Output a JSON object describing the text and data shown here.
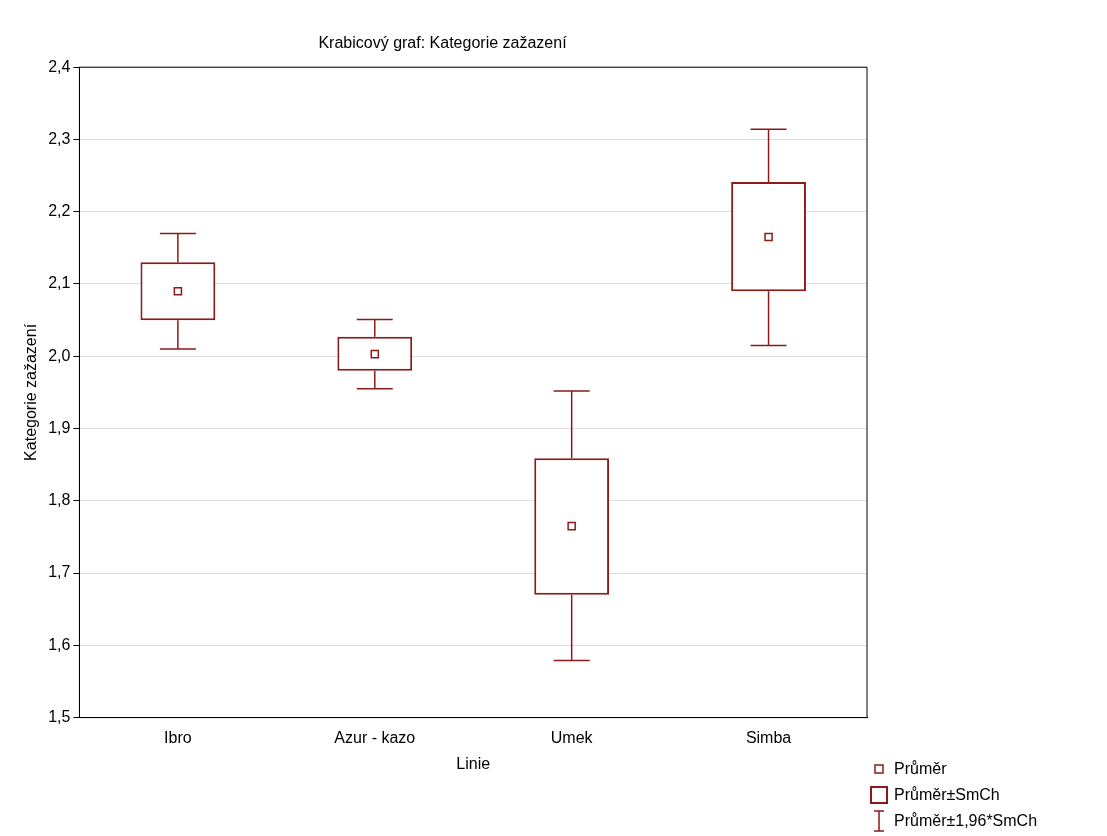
{
  "chart_data": {
    "type": "box",
    "title": "Krabicový graf: Kategorie zažazení",
    "xlabel": "Linie",
    "ylabel": "Kategorie zažazení",
    "categories": [
      "Ibro",
      "Azur - kazo",
      "Umek",
      "Simba"
    ],
    "series": [
      {
        "name": "Průměr",
        "color": "#8b1a1a",
        "boxes": [
          {
            "low": 2.01,
            "q1": 2.05,
            "q3": 2.13,
            "high": 2.17,
            "mean": 2.09
          },
          {
            "low": 1.955,
            "q1": 1.98,
            "q3": 2.027,
            "high": 2.051,
            "mean": 2.003
          },
          {
            "low": 1.579,
            "q1": 1.67,
            "q3": 1.859,
            "high": 1.952,
            "mean": 1.765
          },
          {
            "low": 2.015,
            "q1": 2.09,
            "q3": 2.241,
            "high": 2.314,
            "mean": 2.165
          }
        ]
      }
    ],
    "annotations": [
      "Průměr±SmCh",
      "Průměr±1,96*SmCh"
    ],
    "ylim": [
      1.5,
      2.4
    ],
    "yticks": [
      {
        "value": 1.5,
        "label": "1,5"
      },
      {
        "value": 1.6,
        "label": "1,6"
      },
      {
        "value": 1.7,
        "label": "1,7"
      },
      {
        "value": 1.8,
        "label": "1,8"
      },
      {
        "value": 1.9,
        "label": "1,9"
      },
      {
        "value": 2.0,
        "label": "2,0"
      },
      {
        "value": 2.1,
        "label": "2,1"
      },
      {
        "value": 2.2,
        "label": "2,2"
      },
      {
        "value": 2.3,
        "label": "2,3"
      },
      {
        "value": 2.4,
        "label": "2,4"
      }
    ],
    "grid": "y",
    "legend": "bottom right",
    "marker": "square"
  }
}
